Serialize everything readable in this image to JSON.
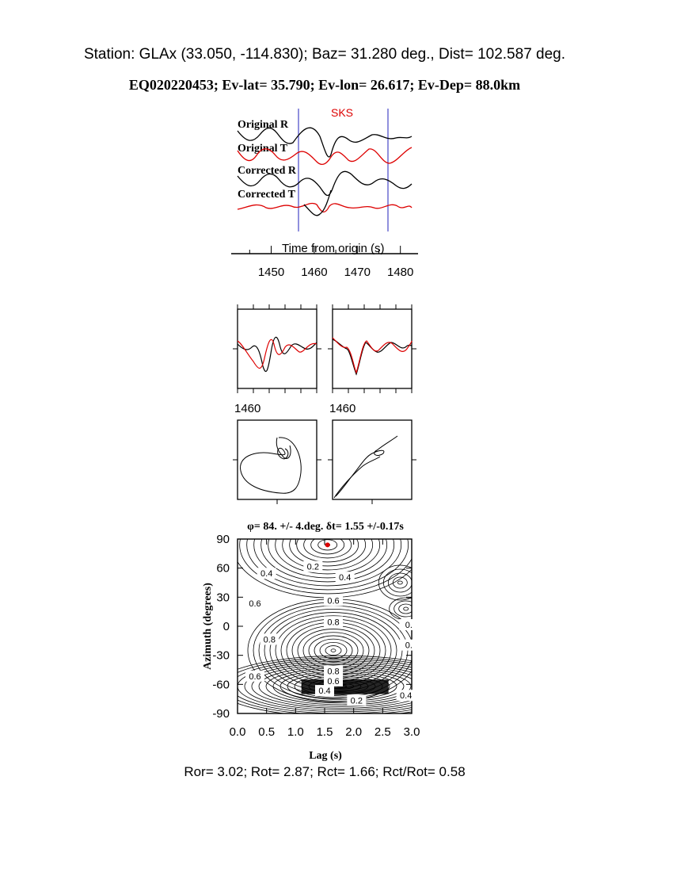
{
  "header": {
    "station_line": "Station: GLAx (33.050, -114.830); Baz=   31.280 deg., Dist=  102.587 deg.",
    "event_line": "EQ020220453; Ev-lat=  35.790; Ev-lon=  26.617; Ev-Dep= 88.0km"
  },
  "footer": {
    "stats_line": "Ror= 3.02; Rot= 2.87; Rct= 1.66; Rct/Rot= 0.58"
  },
  "colors": {
    "radial": "#000000",
    "transverse": "#dd0000",
    "window_marker": "#2222bb",
    "best_fit_dot": "#dd0000"
  },
  "chart_data": [
    {
      "type": "line",
      "panel": "waveforms",
      "phase_label": "SKS",
      "traces": [
        {
          "name": "Original R",
          "color": "#000000"
        },
        {
          "name": "Original T",
          "color": "#dd0000"
        },
        {
          "name": "Corrected R",
          "color": "#000000"
        },
        {
          "name": "Corrected T",
          "color": "#dd0000"
        }
      ],
      "xlabel": "Time from origin (s)",
      "xlim": [
        1442,
        1483
      ],
      "xticks": [
        1450,
        1460,
        1470,
        1480
      ],
      "window": [
        1457.3,
        1476.6
      ]
    },
    {
      "type": "line",
      "panel": "particle-comparison",
      "subplots": [
        {
          "name": "original",
          "tick_label": "1460"
        },
        {
          "name": "corrected",
          "tick_label": "1460"
        }
      ]
    },
    {
      "type": "line",
      "panel": "particle-motion",
      "subplots": [
        {
          "name": "original"
        },
        {
          "name": "corrected"
        }
      ]
    },
    {
      "type": "heatmap",
      "panel": "energy-grid",
      "title": "φ= 84. +/- 4.deg. δt= 1.55 +/-0.17s",
      "xlabel": "Lag (s)",
      "ylabel": "Azimuth (degrees)",
      "xlim": [
        0.0,
        3.0
      ],
      "ylim": [
        -90,
        90
      ],
      "xticks": [
        "0.0",
        "0.5",
        "1.0",
        "1.5",
        "2.0",
        "2.5",
        "3.0"
      ],
      "yticks": [
        "90",
        "60",
        "30",
        "0",
        "-30",
        "-60",
        "-90"
      ],
      "best_fit": {
        "lag": 1.55,
        "azimuth": 84
      },
      "contour_labels": [
        {
          "text": "0.2",
          "lag": 1.3,
          "azimuth": 60
        },
        {
          "text": "0.4",
          "lag": 1.85,
          "azimuth": 49
        },
        {
          "text": "0.4",
          "lag": 0.5,
          "azimuth": 53
        },
        {
          "text": "0.6",
          "lag": 0.3,
          "azimuth": 22
        },
        {
          "text": "0.6",
          "lag": 1.65,
          "azimuth": 25
        },
        {
          "text": "0.8",
          "lag": 1.65,
          "azimuth": 3
        },
        {
          "text": "0.8",
          "lag": 0.55,
          "azimuth": -15
        },
        {
          "text": "0.6",
          "lag": 0.3,
          "azimuth": -53
        },
        {
          "text": "0.8",
          "lag": 1.65,
          "azimuth": -48
        },
        {
          "text": "0.6",
          "lag": 1.65,
          "azimuth": -58
        },
        {
          "text": "0.4",
          "lag": 1.5,
          "azimuth": -68
        },
        {
          "text": "0.2",
          "lag": 2.05,
          "azimuth": -78
        },
        {
          "text": "0.4",
          "lag": 2.9,
          "azimuth": -73
        },
        {
          "text": "0.",
          "lag": 2.95,
          "azimuth": 0
        },
        {
          "text": "0.",
          "lag": 2.95,
          "azimuth": -21
        }
      ]
    }
  ]
}
